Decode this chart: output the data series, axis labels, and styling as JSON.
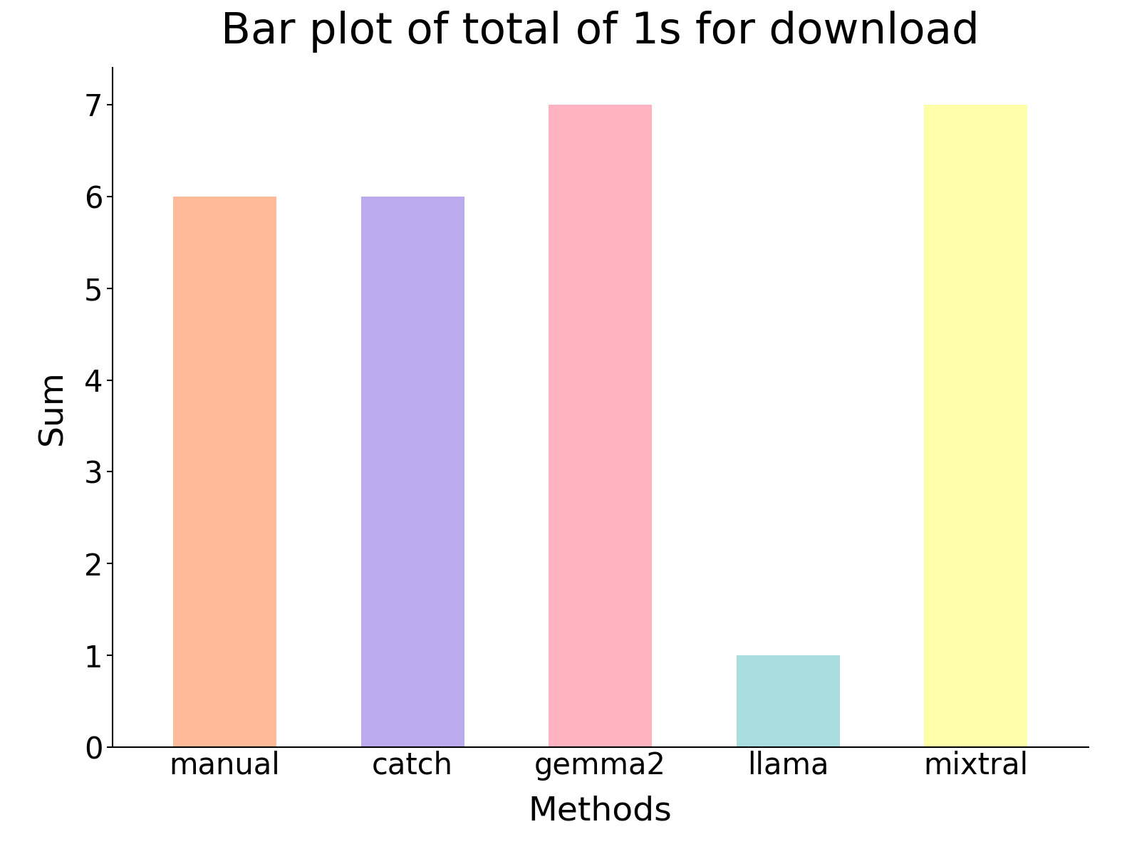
{
  "title": "Bar plot of total of 1s for download",
  "xlabel": "Methods",
  "ylabel": "Sum",
  "categories": [
    "manual",
    "catch",
    "gemma2",
    "llama",
    "mixtral"
  ],
  "values": [
    6,
    6,
    7,
    1,
    7
  ],
  "bar_colors": [
    "#FFBB99",
    "#BBAAEE",
    "#FFB3C1",
    "#AADDDD",
    "#FFFFAA"
  ],
  "ylim": [
    0,
    7.4
  ],
  "yticks": [
    0,
    1,
    2,
    3,
    4,
    5,
    6,
    7
  ],
  "title_fontsize": 44,
  "label_fontsize": 34,
  "tick_fontsize": 30,
  "background_color": "#ffffff",
  "bar_width": 0.55
}
